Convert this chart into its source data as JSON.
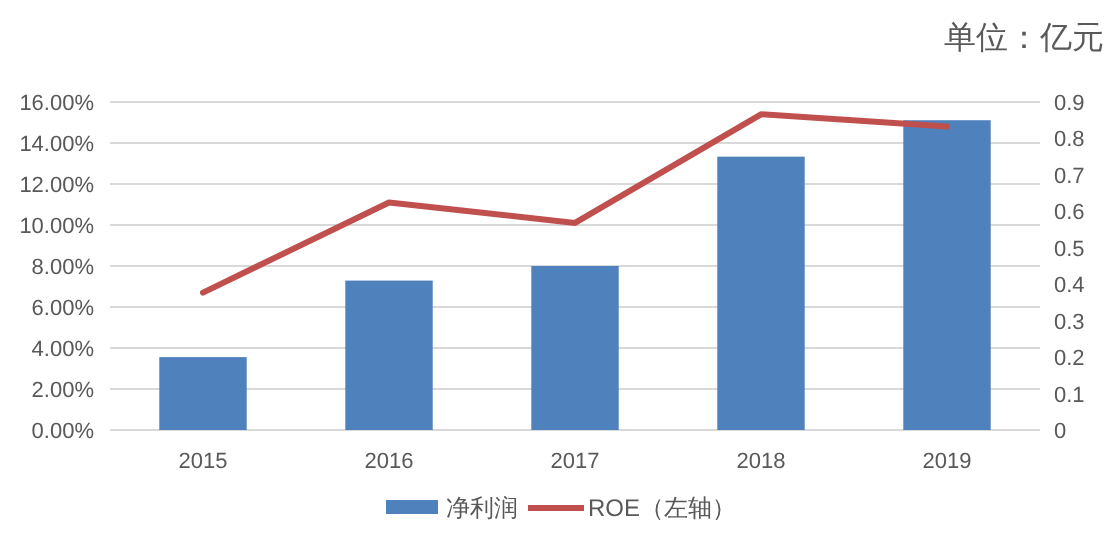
{
  "chart_data": {
    "type": "bar",
    "title": "单位：亿元",
    "categories": [
      "2015",
      "2016",
      "2017",
      "2018",
      "2019"
    ],
    "series": [
      {
        "name": "净利润",
        "axis": "y2",
        "color": "#4f81bd",
        "values": [
          0.2,
          0.41,
          0.45,
          0.75,
          0.85
        ]
      },
      {
        "name": "ROE（左轴）",
        "type": "line",
        "color": "#c0504d",
        "values": [
          6.7,
          11.1,
          10.1,
          15.4,
          14.8
        ]
      }
    ],
    "ylim": [
      0,
      16
    ],
    "yticks": [
      {
        "value": 0,
        "label": "0.00%"
      },
      {
        "value": 2,
        "label": "2.00%"
      },
      {
        "value": 4,
        "label": "4.00%"
      },
      {
        "value": 6,
        "label": "6.00%"
      },
      {
        "value": 8,
        "label": "8.00%"
      },
      {
        "value": 10,
        "label": "10.00%"
      },
      {
        "value": 12,
        "label": "12.00%"
      },
      {
        "value": 14,
        "label": "14.00%"
      },
      {
        "value": 16,
        "label": "16.00%"
      }
    ],
    "y2lim": [
      0,
      0.9
    ],
    "y2ticks": [
      0,
      0.1,
      0.2,
      0.3,
      0.4,
      0.5,
      0.6,
      0.7,
      0.8,
      0.9
    ],
    "grid": "y",
    "legend": "bottom",
    "marker": "none"
  }
}
